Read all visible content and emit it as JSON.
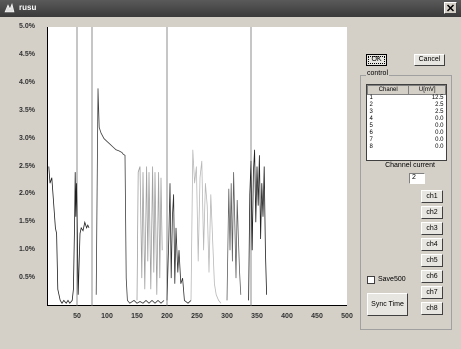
{
  "window": {
    "title": "rusu"
  },
  "icons": {
    "app": "app-icon",
    "close": "close-icon",
    "checkbox": "checkbox-icon"
  },
  "buttons": {
    "ok": "OK",
    "cancel": "Cancel",
    "sync": "Sync Time",
    "channels": [
      "ch1",
      "ch2",
      "ch3",
      "ch4",
      "ch5",
      "ch6",
      "ch7",
      "ch8"
    ]
  },
  "control": {
    "group_label": "control",
    "col_channel": "Chanel",
    "col_voltage": "U[mV]",
    "rows": [
      {
        "ch": "1",
        "u": "12.5"
      },
      {
        "ch": "2",
        "u": "2.5"
      },
      {
        "ch": "3",
        "u": "2.5"
      },
      {
        "ch": "4",
        "u": "0.0"
      },
      {
        "ch": "5",
        "u": "0.0"
      },
      {
        "ch": "6",
        "u": "0.0"
      },
      {
        "ch": "7",
        "u": "0.0"
      },
      {
        "ch": "8",
        "u": "0.0"
      }
    ],
    "channel_current_label": "Channel current",
    "channel_current_value": "2",
    "save_label": "Save500",
    "save_checked": false
  },
  "chart_data": {
    "type": "line",
    "title": "",
    "xlabel": "",
    "ylabel": "",
    "xlim": [
      0,
      500
    ],
    "ylim": [
      0,
      5.0
    ],
    "x_ticks": [
      "50",
      "100",
      "150",
      "200",
      "250",
      "300",
      "350",
      "400",
      "450",
      "500"
    ],
    "y_ticks": [
      "5.0%",
      "4.5%",
      "4.0%",
      "3.5%",
      "3.0%",
      "2.5%",
      "2.0%",
      "1.5%",
      "1.0%",
      "0.5%"
    ],
    "grid": false,
    "markers_x": [
      50,
      75,
      200,
      340
    ],
    "series": [
      {
        "color": "#202020",
        "points": [
          [
            3,
            2.5
          ],
          [
            5,
            2.2
          ],
          [
            8,
            2.3
          ],
          [
            10,
            2.0
          ],
          [
            12,
            1.7
          ],
          [
            14,
            1.4
          ],
          [
            16,
            1.3
          ],
          [
            18,
            0.3
          ],
          [
            22,
            0.1
          ],
          [
            25,
            0.05
          ],
          [
            28,
            0.1
          ],
          [
            32,
            0.05
          ],
          [
            35,
            0.1
          ],
          [
            38,
            0.05
          ],
          [
            42,
            0.1
          ],
          [
            44,
            0.3
          ],
          [
            46,
            1.5
          ],
          [
            47,
            2.4
          ],
          [
            48,
            1.6
          ],
          [
            49,
            2.2
          ],
          [
            50,
            1.8
          ],
          [
            52,
            0.2
          ],
          [
            55,
            1.3
          ],
          [
            57,
            1.4
          ],
          [
            60,
            1.35
          ],
          [
            63,
            1.5
          ],
          [
            66,
            1.4
          ],
          [
            68,
            1.45
          ],
          [
            70,
            1.4
          ]
        ]
      },
      {
        "color": "#404040",
        "points": [
          [
            82,
            0.2
          ],
          [
            85,
            3.9
          ],
          [
            87,
            3.2
          ],
          [
            90,
            3.1
          ],
          [
            95,
            3.0
          ],
          [
            100,
            2.95
          ],
          [
            105,
            2.9
          ],
          [
            110,
            2.85
          ],
          [
            115,
            2.8
          ],
          [
            120,
            2.78
          ],
          [
            125,
            2.75
          ],
          [
            127,
            2.72
          ],
          [
            130,
            2.7
          ],
          [
            132,
            0.5
          ],
          [
            134,
            0.1
          ],
          [
            138,
            0.05
          ],
          [
            145,
            0.1
          ],
          [
            150,
            0.05
          ],
          [
            155,
            0.08
          ],
          [
            160,
            0.05
          ],
          [
            165,
            0.1
          ],
          [
            170,
            0.05
          ],
          [
            175,
            0.1
          ],
          [
            180,
            0.05
          ],
          [
            185,
            0.1
          ],
          [
            190,
            0.05
          ],
          [
            195,
            0.1
          ]
        ]
      },
      {
        "color": "#a0a0a0",
        "points": [
          [
            150,
            0.1
          ],
          [
            152,
            2.4
          ],
          [
            155,
            2.5
          ],
          [
            158,
            0.5
          ],
          [
            160,
            2.4
          ],
          [
            163,
            0.3
          ],
          [
            166,
            2.5
          ],
          [
            168,
            0.8
          ],
          [
            170,
            2.4
          ],
          [
            173,
            0.3
          ],
          [
            176,
            2.5
          ],
          [
            178,
            0.6
          ],
          [
            180,
            2.4
          ],
          [
            183,
            0.2
          ],
          [
            186,
            2.4
          ],
          [
            188,
            0.5
          ],
          [
            190,
            2.3
          ],
          [
            192,
            1.0
          ]
        ]
      },
      {
        "color": "#303030",
        "points": [
          [
            200,
            0.1
          ],
          [
            203,
            1.2
          ],
          [
            205,
            2.2
          ],
          [
            207,
            0.5
          ],
          [
            209,
            1.6
          ],
          [
            211,
            2.0
          ],
          [
            213,
            0.4
          ],
          [
            215,
            1.4
          ],
          [
            218,
            0.6
          ],
          [
            220,
            1.0
          ],
          [
            223,
            0.4
          ],
          [
            226,
            0.5
          ],
          [
            229,
            0.1
          ],
          [
            235,
            0.05
          ],
          [
            240,
            0.1
          ]
        ]
      },
      {
        "color": "#b8b8b8",
        "points": [
          [
            240,
            0.1
          ],
          [
            243,
            2.8
          ],
          [
            246,
            2.2
          ],
          [
            249,
            2.5
          ],
          [
            252,
            0.8
          ],
          [
            255,
            2.3
          ],
          [
            258,
            2.6
          ],
          [
            261,
            1.0
          ],
          [
            264,
            2.2
          ],
          [
            267,
            1.8
          ],
          [
            270,
            0.6
          ],
          [
            273,
            2.0
          ],
          [
            276,
            1.2
          ],
          [
            279,
            0.4
          ],
          [
            282,
            0.2
          ],
          [
            286,
            0.1
          ],
          [
            290,
            0.05
          ]
        ]
      },
      {
        "color": "#606060",
        "points": [
          [
            300,
            0.1
          ],
          [
            303,
            2.1
          ],
          [
            305,
            1.0
          ],
          [
            307,
            2.2
          ],
          [
            309,
            0.8
          ],
          [
            311,
            2.4
          ],
          [
            313,
            1.5
          ],
          [
            315,
            0.5
          ],
          [
            317,
            1.9
          ],
          [
            319,
            1.2
          ],
          [
            321,
            0.6
          ],
          [
            323,
            0.2
          ]
        ]
      },
      {
        "color": "#202020",
        "points": [
          [
            336,
            0.1
          ],
          [
            338,
            2.0
          ],
          [
            340,
            2.6
          ],
          [
            342,
            1.0
          ],
          [
            344,
            2.4
          ],
          [
            346,
            2.8
          ],
          [
            348,
            1.5
          ],
          [
            350,
            2.5
          ],
          [
            352,
            1.8
          ],
          [
            354,
            2.7
          ],
          [
            356,
            1.2
          ],
          [
            358,
            2.2
          ],
          [
            360,
            1.6
          ],
          [
            362,
            2.5
          ],
          [
            364,
            1.0
          ],
          [
            366,
            0.2
          ]
        ]
      }
    ]
  }
}
